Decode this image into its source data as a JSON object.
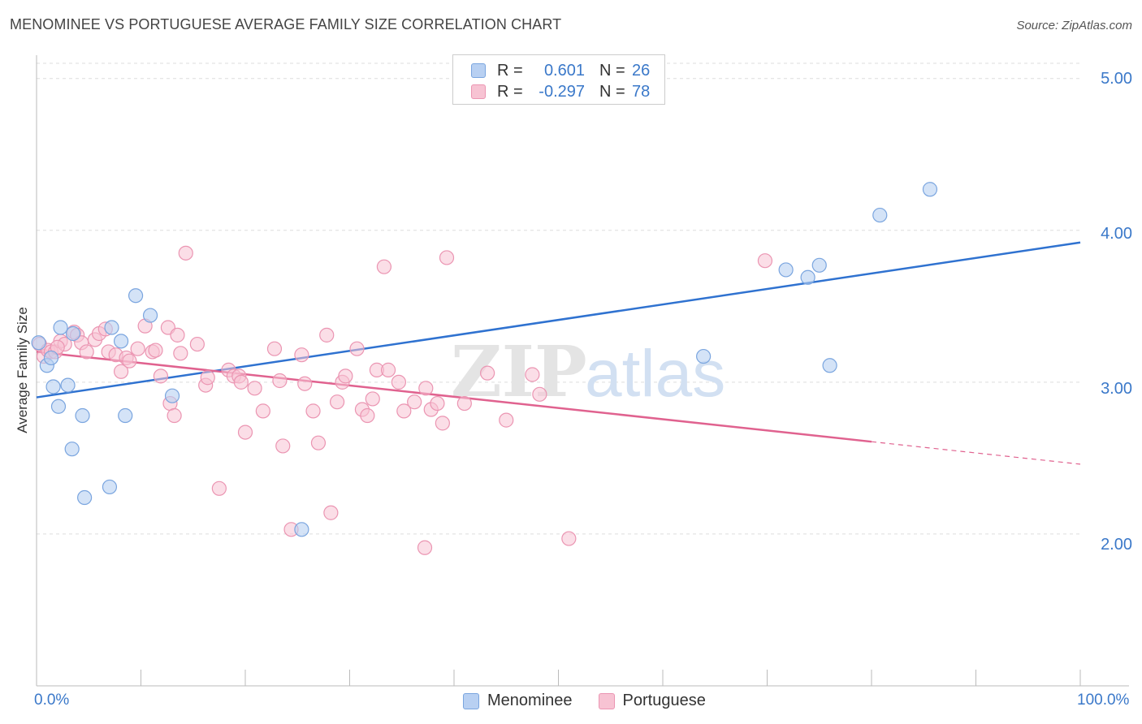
{
  "title": "MENOMINEE VS PORTUGUESE AVERAGE FAMILY SIZE CORRELATION CHART",
  "source": "Source: ZipAtlas.com",
  "colors": {
    "menominee_fill": "#b8d0f2",
    "menominee_stroke": "#7aa5df",
    "menominee_line": "#2f72d0",
    "portuguese_fill": "#f7c3d3",
    "portuguese_stroke": "#eb95b2",
    "portuguese_line": "#e0628f",
    "tick_text": "#3a78c9",
    "grid": "#dddddd"
  },
  "legend": {
    "rows": [
      {
        "r_label": "R =",
        "r_value": "0.601",
        "n_label": "N =",
        "n_value": "26"
      },
      {
        "r_label": "R =",
        "r_value": "-0.297",
        "n_label": "N =",
        "n_value": "78"
      }
    ]
  },
  "watermark": {
    "zip": "ZIP",
    "atlas": "atlas"
  },
  "chart_data": {
    "type": "scatter",
    "title": "MENOMINEE VS PORTUGUESE AVERAGE FAMILY SIZE CORRELATION CHART",
    "xlabel": "",
    "ylabel": "Average Family Size",
    "xlim": [
      0,
      100
    ],
    "ylim": [
      1.0,
      5.1
    ],
    "x_tick_labels": [
      "0.0%",
      "100.0%"
    ],
    "y_ticks": [
      2.0,
      3.0,
      4.0,
      5.0
    ],
    "y_tick_labels": [
      "2.00",
      "3.00",
      "4.00",
      "5.00"
    ],
    "grid": true,
    "legend_position": "bottom",
    "series": [
      {
        "name": "Menominee",
        "points": [
          [
            0.2,
            3.26
          ],
          [
            1.0,
            3.11
          ],
          [
            1.4,
            3.16
          ],
          [
            1.6,
            2.97
          ],
          [
            2.1,
            2.84
          ],
          [
            2.3,
            3.36
          ],
          [
            3.0,
            2.98
          ],
          [
            3.4,
            2.56
          ],
          [
            3.5,
            3.32
          ],
          [
            4.4,
            2.78
          ],
          [
            4.6,
            2.24
          ],
          [
            7.0,
            2.31
          ],
          [
            7.2,
            3.36
          ],
          [
            8.1,
            3.27
          ],
          [
            8.5,
            2.78
          ],
          [
            9.5,
            3.57
          ],
          [
            10.9,
            3.44
          ],
          [
            13.0,
            2.91
          ],
          [
            25.4,
            2.03
          ],
          [
            63.9,
            3.17
          ],
          [
            71.8,
            3.74
          ],
          [
            73.9,
            3.69
          ],
          [
            75.0,
            3.77
          ],
          [
            76.0,
            3.11
          ],
          [
            80.8,
            4.1
          ],
          [
            85.6,
            4.27
          ]
        ],
        "trend": {
          "x": [
            0,
            100
          ],
          "y": [
            2.9,
            3.92
          ]
        }
      },
      {
        "name": "Portuguese",
        "points": [
          [
            0.3,
            3.25
          ],
          [
            0.7,
            3.17
          ],
          [
            1.1,
            3.21
          ],
          [
            1.4,
            3.2
          ],
          [
            1.8,
            3.2
          ],
          [
            2.3,
            3.27
          ],
          [
            2.7,
            3.25
          ],
          [
            3.6,
            3.33
          ],
          [
            3.9,
            3.31
          ],
          [
            4.3,
            3.26
          ],
          [
            4.8,
            3.2
          ],
          [
            5.6,
            3.28
          ],
          [
            6.0,
            3.32
          ],
          [
            6.6,
            3.35
          ],
          [
            6.9,
            3.2
          ],
          [
            7.6,
            3.18
          ],
          [
            8.1,
            3.07
          ],
          [
            8.6,
            3.16
          ],
          [
            8.9,
            3.14
          ],
          [
            9.7,
            3.22
          ],
          [
            10.4,
            3.37
          ],
          [
            11.1,
            3.2
          ],
          [
            11.4,
            3.21
          ],
          [
            11.9,
            3.04
          ],
          [
            12.6,
            3.36
          ],
          [
            12.8,
            2.86
          ],
          [
            13.2,
            2.78
          ],
          [
            13.5,
            3.31
          ],
          [
            13.8,
            3.19
          ],
          [
            14.3,
            3.85
          ],
          [
            15.4,
            3.25
          ],
          [
            16.2,
            2.98
          ],
          [
            16.4,
            3.03
          ],
          [
            17.5,
            2.3
          ],
          [
            18.4,
            3.08
          ],
          [
            18.9,
            3.04
          ],
          [
            19.4,
            3.04
          ],
          [
            19.6,
            3.0
          ],
          [
            20.0,
            2.67
          ],
          [
            20.9,
            2.96
          ],
          [
            21.7,
            2.81
          ],
          [
            22.8,
            3.22
          ],
          [
            23.3,
            3.01
          ],
          [
            23.6,
            2.58
          ],
          [
            24.4,
            2.03
          ],
          [
            25.4,
            3.18
          ],
          [
            25.7,
            2.99
          ],
          [
            26.5,
            2.81
          ],
          [
            27.0,
            2.6
          ],
          [
            27.8,
            3.31
          ],
          [
            28.2,
            2.14
          ],
          [
            28.8,
            2.87
          ],
          [
            29.3,
            3.0
          ],
          [
            29.6,
            3.04
          ],
          [
            30.7,
            3.22
          ],
          [
            31.2,
            2.82
          ],
          [
            31.7,
            2.78
          ],
          [
            32.2,
            2.89
          ],
          [
            32.6,
            3.08
          ],
          [
            33.3,
            3.76
          ],
          [
            33.7,
            3.08
          ],
          [
            34.7,
            3.0
          ],
          [
            35.2,
            2.81
          ],
          [
            36.2,
            2.87
          ],
          [
            37.2,
            1.91
          ],
          [
            37.3,
            2.96
          ],
          [
            37.8,
            2.82
          ],
          [
            38.4,
            2.86
          ],
          [
            38.9,
            2.73
          ],
          [
            39.3,
            3.82
          ],
          [
            41.0,
            2.86
          ],
          [
            43.2,
            3.06
          ],
          [
            45.0,
            2.75
          ],
          [
            47.5,
            3.05
          ],
          [
            48.2,
            2.92
          ],
          [
            51.0,
            1.97
          ],
          [
            69.8,
            3.8
          ],
          [
            2.0,
            3.23
          ]
        ],
        "trend": {
          "x": [
            0,
            100
          ],
          "y": [
            3.2,
            2.46
          ]
        },
        "trend_solid_until_x": 80
      }
    ]
  },
  "bottom_legend": [
    {
      "label": "Menominee"
    },
    {
      "label": "Portuguese"
    }
  ]
}
